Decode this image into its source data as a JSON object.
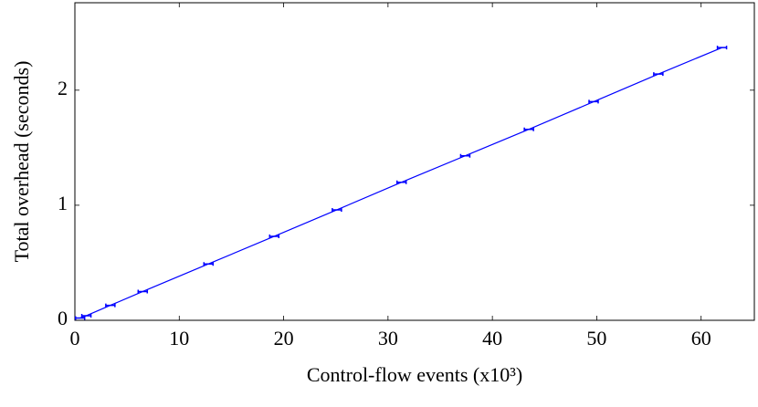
{
  "chart_data": {
    "type": "line",
    "xlabel": "Control-flow events (x10³)",
    "ylabel": "Total overhead (seconds)",
    "x": [
      0.5,
      1.1,
      3.4,
      6.5,
      12.8,
      19.1,
      25.1,
      31.3,
      37.4,
      43.5,
      49.7,
      55.9,
      62.0
    ],
    "series": [
      {
        "color": "#0000ff",
        "values": [
          0.02,
          0.04,
          0.13,
          0.25,
          0.49,
          0.73,
          0.96,
          1.2,
          1.43,
          1.66,
          1.9,
          2.14,
          2.37
        ]
      }
    ],
    "xlim": [
      0,
      65.1
    ],
    "ylim": [
      0,
      2.76
    ],
    "xticks": [
      0,
      10,
      20,
      30,
      40,
      50,
      60
    ],
    "yticks": [
      0,
      1,
      2
    ]
  }
}
